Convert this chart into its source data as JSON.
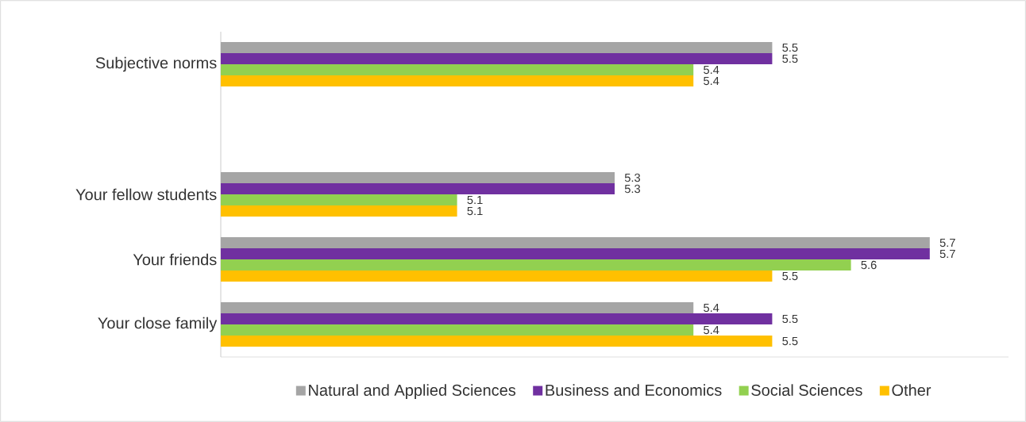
{
  "chart_data": {
    "type": "bar",
    "orientation": "horizontal",
    "categories": [
      "Subjective norms",
      null,
      "Your fellow students",
      "Your friends",
      "Your close family"
    ],
    "series": [
      {
        "name": "Natural and Applied Sciences",
        "color": "#a5a5a5",
        "values": [
          5.5,
          null,
          5.3,
          5.7,
          5.4
        ]
      },
      {
        "name": "Business and Economics",
        "color": "#7030a0",
        "values": [
          5.5,
          null,
          5.3,
          5.7,
          5.5
        ]
      },
      {
        "name": "Social Sciences",
        "color": "#92d050",
        "values": [
          5.4,
          null,
          5.1,
          5.6,
          5.4
        ]
      },
      {
        "name": "Other",
        "color": "#ffc000",
        "values": [
          5.4,
          null,
          5.1,
          5.5,
          5.5
        ]
      }
    ],
    "xlim": [
      4.8,
      5.8
    ],
    "tick_labels": "y",
    "data_labels": true,
    "legend": "bottom",
    "grid": false
  }
}
